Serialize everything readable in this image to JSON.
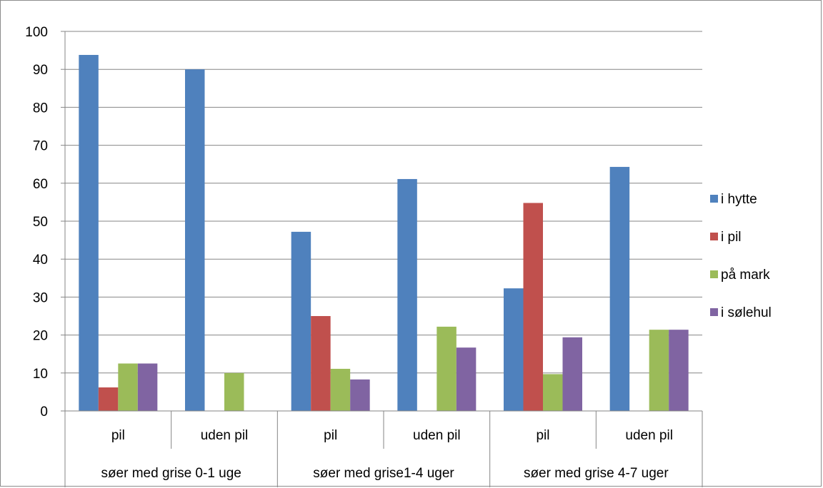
{
  "chart_data": {
    "type": "bar",
    "title": "",
    "xlabel": "",
    "ylabel": "",
    "ylim": [
      0,
      100
    ],
    "y_ticks": [
      0,
      10,
      20,
      30,
      40,
      50,
      60,
      70,
      80,
      90,
      100
    ],
    "grid": true,
    "legend_position": "right",
    "groups": [
      {
        "label": "søer med grise 0-1 uge",
        "subcategories": [
          "pil",
          "uden pil"
        ]
      },
      {
        "label": "søer med grise1-4 uger",
        "subcategories": [
          "pil",
          "uden pil"
        ]
      },
      {
        "label": "søer med grise 4-7 uger",
        "subcategories": [
          "pil",
          "uden pil"
        ]
      }
    ],
    "categories": [
      "pil",
      "uden pil",
      "pil",
      "uden pil",
      "pil",
      "uden pil"
    ],
    "series": [
      {
        "name": "i hytte",
        "color": "#4f81bd",
        "values": [
          93.8,
          90.0,
          47.2,
          61.1,
          32.3,
          64.3
        ]
      },
      {
        "name": "i pil",
        "color": "#c0504d",
        "values": [
          6.2,
          0,
          25.0,
          0,
          54.8,
          0
        ]
      },
      {
        "name": "på mark",
        "color": "#9bbb59",
        "values": [
          12.5,
          10.0,
          11.1,
          22.2,
          9.7,
          21.4
        ]
      },
      {
        "name": "i sølehul",
        "color": "#8064a2",
        "values": [
          12.5,
          0,
          8.3,
          16.7,
          19.4,
          21.4
        ]
      }
    ]
  }
}
